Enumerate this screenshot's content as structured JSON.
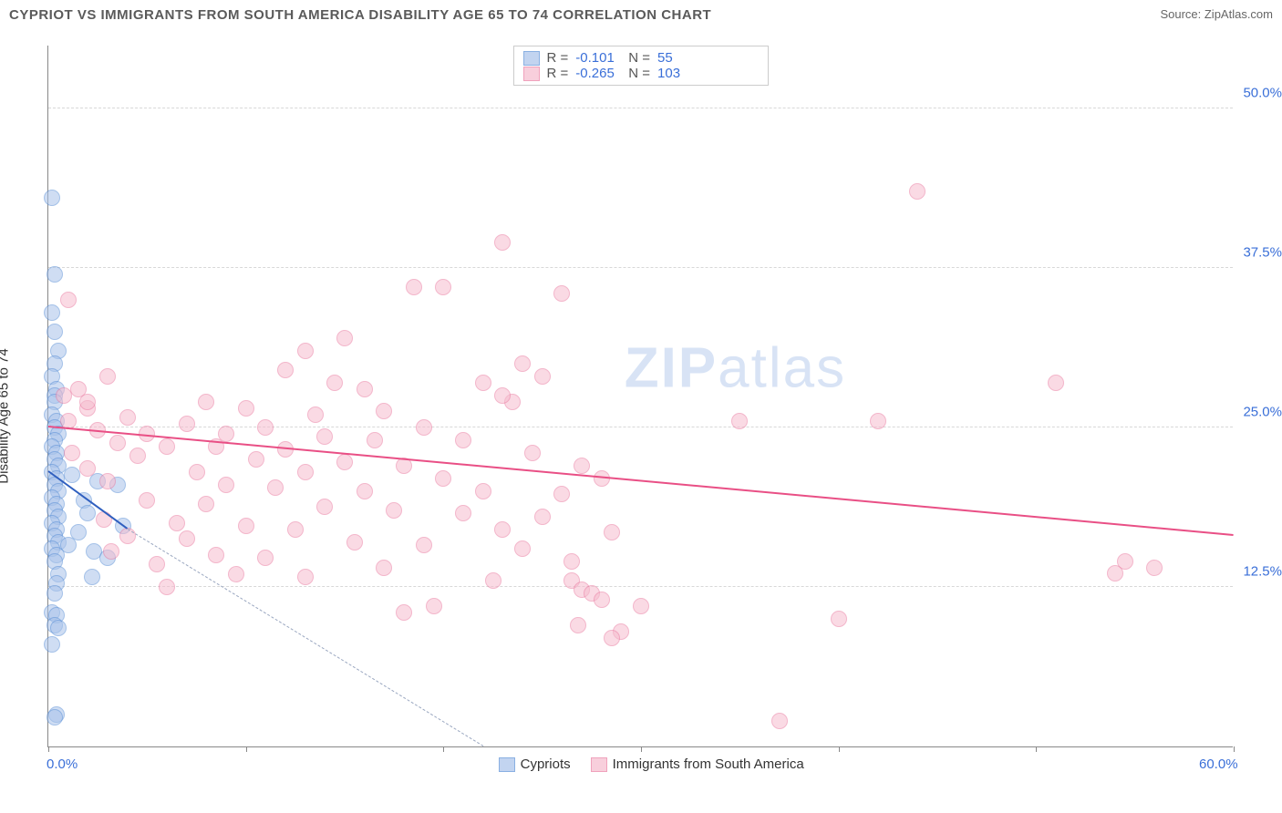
{
  "title": "CYPRIOT VS IMMIGRANTS FROM SOUTH AMERICA DISABILITY AGE 65 TO 74 CORRELATION CHART",
  "source_prefix": "Source: ",
  "source_name": "ZipAtlas.com",
  "ylabel": "Disability Age 65 to 74",
  "watermark": {
    "bold": "ZIP",
    "rest": "atlas"
  },
  "chart": {
    "type": "scatter",
    "xlim": [
      0,
      60
    ],
    "ylim": [
      0,
      55
    ],
    "xtick_positions": [
      0,
      10,
      20,
      30,
      40,
      50,
      60
    ],
    "xtick_labels": {
      "0": "0.0%",
      "60": "60.0%"
    },
    "ytick_positions": [
      12.5,
      25.0,
      37.5,
      50.0
    ],
    "ytick_labels": [
      "12.5%",
      "25.0%",
      "37.5%",
      "50.0%"
    ],
    "grid_color": "#d8d8d8",
    "background_color": "#ffffff",
    "axis_color": "#888888",
    "tick_label_color": "#3a6fd8",
    "marker_radius": 9,
    "marker_border_width": 1.2,
    "series": [
      {
        "id": "cypriots",
        "label": "Cypriots",
        "fill": "#a9c3ea",
        "stroke": "#5a8fd6",
        "fill_opacity": 0.55,
        "R": "-0.101",
        "N": "55",
        "regression": {
          "x1": 0,
          "y1": 21.5,
          "x2": 4,
          "y2": 17.0,
          "dash_extend_to_x": 22,
          "dash_y_at_end": 0,
          "color": "#2f5fbf",
          "width": 2
        },
        "points": [
          [
            0.2,
            43
          ],
          [
            0.3,
            37
          ],
          [
            0.2,
            34
          ],
          [
            0.3,
            32.5
          ],
          [
            0.5,
            31
          ],
          [
            0.3,
            30
          ],
          [
            0.2,
            29
          ],
          [
            0.4,
            28
          ],
          [
            0.3,
            27.5
          ],
          [
            0.3,
            27
          ],
          [
            0.2,
            26
          ],
          [
            0.4,
            25.5
          ],
          [
            0.3,
            25
          ],
          [
            0.5,
            24.5
          ],
          [
            0.3,
            24
          ],
          [
            0.2,
            23.5
          ],
          [
            0.4,
            23
          ],
          [
            0.3,
            22.5
          ],
          [
            0.5,
            22
          ],
          [
            0.2,
            21.5
          ],
          [
            1.2,
            21.3
          ],
          [
            0.4,
            21
          ],
          [
            2.5,
            20.8
          ],
          [
            0.3,
            20.5
          ],
          [
            3.5,
            20.5
          ],
          [
            0.5,
            20
          ],
          [
            0.2,
            19.5
          ],
          [
            1.8,
            19.3
          ],
          [
            0.4,
            19
          ],
          [
            0.3,
            18.5
          ],
          [
            2.0,
            18.3
          ],
          [
            0.5,
            18
          ],
          [
            0.2,
            17.5
          ],
          [
            3.8,
            17.3
          ],
          [
            0.4,
            17
          ],
          [
            1.5,
            16.8
          ],
          [
            0.3,
            16.5
          ],
          [
            0.5,
            16
          ],
          [
            1.0,
            15.8
          ],
          [
            0.2,
            15.5
          ],
          [
            2.3,
            15.3
          ],
          [
            0.4,
            15
          ],
          [
            3.0,
            14.8
          ],
          [
            0.3,
            14.5
          ],
          [
            0.5,
            13.5
          ],
          [
            2.2,
            13.3
          ],
          [
            0.4,
            12.8
          ],
          [
            0.3,
            12
          ],
          [
            0.2,
            10.5
          ],
          [
            0.4,
            10.3
          ],
          [
            0.3,
            9.5
          ],
          [
            0.5,
            9.3
          ],
          [
            0.2,
            8
          ],
          [
            0.4,
            2.5
          ],
          [
            0.3,
            2.3
          ]
        ]
      },
      {
        "id": "south_america",
        "label": "Immigrants from South America",
        "fill": "#f6bcce",
        "stroke": "#ea7ba1",
        "fill_opacity": 0.55,
        "R": "-0.265",
        "N": "103",
        "regression": {
          "x1": 0,
          "y1": 25.0,
          "x2": 60,
          "y2": 16.5,
          "color": "#e94f85",
          "width": 2
        },
        "points": [
          [
            44,
            43.5
          ],
          [
            23,
            39.5
          ],
          [
            20,
            36
          ],
          [
            26,
            35.5
          ],
          [
            1,
            35
          ],
          [
            51,
            28.5
          ],
          [
            15,
            32
          ],
          [
            13,
            31
          ],
          [
            24,
            30
          ],
          [
            12,
            29.5
          ],
          [
            3,
            29
          ],
          [
            14.5,
            28.5
          ],
          [
            22,
            28.5
          ],
          [
            25,
            29
          ],
          [
            1.5,
            28
          ],
          [
            16,
            28
          ],
          [
            0.8,
            27.5
          ],
          [
            8,
            27
          ],
          [
            23.5,
            27
          ],
          [
            2,
            26.5
          ],
          [
            10,
            26.5
          ],
          [
            17,
            26.3
          ],
          [
            13.5,
            26
          ],
          [
            42,
            25.5
          ],
          [
            4,
            25.8
          ],
          [
            1,
            25.5
          ],
          [
            7,
            25.3
          ],
          [
            11,
            25
          ],
          [
            19,
            25
          ],
          [
            2.5,
            24.8
          ],
          [
            5,
            24.5
          ],
          [
            9,
            24.5
          ],
          [
            14,
            24.3
          ],
          [
            16.5,
            24
          ],
          [
            21,
            24
          ],
          [
            23,
            27.5
          ],
          [
            3.5,
            23.8
          ],
          [
            6,
            23.5
          ],
          [
            8.5,
            23.5
          ],
          [
            12,
            23.3
          ],
          [
            24.5,
            23
          ],
          [
            1.2,
            23
          ],
          [
            4.5,
            22.8
          ],
          [
            10.5,
            22.5
          ],
          [
            15,
            22.3
          ],
          [
            18,
            22
          ],
          [
            27,
            22
          ],
          [
            2,
            21.8
          ],
          [
            7.5,
            21.5
          ],
          [
            13,
            21.5
          ],
          [
            20,
            21
          ],
          [
            28,
            21
          ],
          [
            3,
            20.8
          ],
          [
            9,
            20.5
          ],
          [
            11.5,
            20.3
          ],
          [
            16,
            20
          ],
          [
            22,
            20
          ],
          [
            26,
            19.8
          ],
          [
            56,
            14
          ],
          [
            5,
            19.3
          ],
          [
            8,
            19
          ],
          [
            14,
            18.8
          ],
          [
            17.5,
            18.5
          ],
          [
            21,
            18.3
          ],
          [
            25,
            18
          ],
          [
            2.8,
            17.8
          ],
          [
            6.5,
            17.5
          ],
          [
            10,
            17.3
          ],
          [
            12.5,
            17
          ],
          [
            23,
            17
          ],
          [
            28.5,
            16.8
          ],
          [
            4,
            16.5
          ],
          [
            7,
            16.3
          ],
          [
            15.5,
            16
          ],
          [
            19,
            15.8
          ],
          [
            24,
            15.5
          ],
          [
            3.2,
            15.3
          ],
          [
            8.5,
            15
          ],
          [
            11,
            14.8
          ],
          [
            26.5,
            14.5
          ],
          [
            5.5,
            14.3
          ],
          [
            17,
            14
          ],
          [
            2,
            27
          ],
          [
            9.5,
            13.5
          ],
          [
            13,
            13.3
          ],
          [
            22.5,
            13
          ],
          [
            26.5,
            13
          ],
          [
            6,
            12.5
          ],
          [
            27,
            12.3
          ],
          [
            54,
            13.6
          ],
          [
            27.5,
            12
          ],
          [
            28,
            11.5
          ],
          [
            19.5,
            11
          ],
          [
            18,
            10.5
          ],
          [
            30,
            11
          ],
          [
            26.8,
            9.5
          ],
          [
            29,
            9
          ],
          [
            40,
            10
          ],
          [
            37,
            2
          ],
          [
            28.5,
            8.5
          ],
          [
            54.5,
            14.5
          ],
          [
            35,
            25.5
          ],
          [
            18.5,
            36
          ]
        ]
      }
    ]
  }
}
